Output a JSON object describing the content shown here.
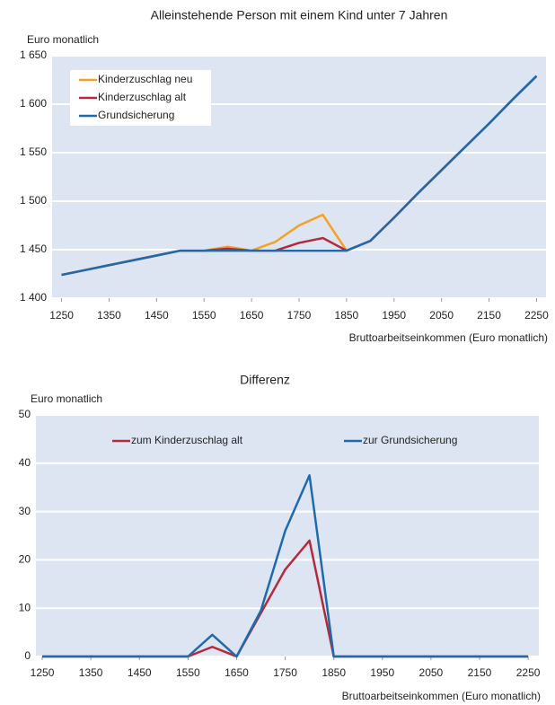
{
  "chart_data": [
    {
      "type": "line",
      "title": "Alleinstehende Person mit einem Kind unter 7 Jahren",
      "ylabel": "Euro monatlich",
      "xlabel": "Bruttoarbeitseinkommen (Euro monatlich)",
      "x": [
        1250,
        1300,
        1350,
        1400,
        1450,
        1500,
        1550,
        1600,
        1650,
        1700,
        1750,
        1800,
        1850,
        1900,
        1950,
        2000,
        2050,
        2100,
        2150,
        2200,
        2250
      ],
      "series": [
        {
          "name": "Kinderzuschlag neu",
          "color": "#f4a125",
          "values": [
            1424,
            1429,
            1434,
            1439,
            1444,
            1449,
            1449,
            1453,
            1449,
            1458,
            1475,
            1486,
            1449,
            1459,
            1483,
            1508,
            1532,
            1556,
            1580,
            1605,
            1629
          ]
        },
        {
          "name": "Kinderzuschlag alt",
          "color": "#b52a3a",
          "values": [
            1424,
            1429,
            1434,
            1439,
            1444,
            1449,
            1449,
            1451,
            1449,
            1449,
            1457,
            1462,
            1449,
            1459,
            1483,
            1508,
            1532,
            1556,
            1580,
            1605,
            1629
          ]
        },
        {
          "name": "Grundsicherung",
          "color": "#1f6aad",
          "values": [
            1424,
            1429,
            1434,
            1439,
            1444,
            1449,
            1449,
            1449,
            1449,
            1449,
            1449,
            1449,
            1449,
            1459,
            1483,
            1508,
            1532,
            1556,
            1580,
            1605,
            1629
          ]
        }
      ],
      "xlim": [
        1230,
        2270
      ],
      "xticks": [
        1250,
        1350,
        1450,
        1550,
        1650,
        1750,
        1850,
        1950,
        2050,
        2150,
        2250
      ],
      "ylim": [
        1400,
        1650
      ],
      "yticks": [
        {
          "value": 1400,
          "label": "1 400"
        },
        {
          "value": 1450,
          "label": "1 450"
        },
        {
          "value": 1500,
          "label": "1 500"
        },
        {
          "value": 1550,
          "label": "1 550"
        },
        {
          "value": 1600,
          "label": "1 600"
        },
        {
          "value": 1650,
          "label": "1 650"
        }
      ],
      "grid": true,
      "legend": "upper left"
    },
    {
      "type": "line",
      "title": "Differenz",
      "ylabel": "Euro monatlich",
      "xlabel": "Bruttoarbeitseinkommen (Euro monatlich)",
      "x": [
        1250,
        1300,
        1350,
        1400,
        1450,
        1500,
        1550,
        1600,
        1650,
        1700,
        1750,
        1800,
        1850,
        1900,
        1950,
        2000,
        2050,
        2100,
        2150,
        2200,
        2250
      ],
      "series": [
        {
          "name": "zum Kinderzuschlag alt",
          "color": "#b52a3a",
          "values": [
            0,
            0,
            0,
            0,
            0,
            0,
            0,
            2,
            0,
            9,
            18,
            24,
            0,
            0,
            0,
            0,
            0,
            0,
            0,
            0,
            0
          ]
        },
        {
          "name": "zur Grundsicherung",
          "color": "#1f6aad",
          "values": [
            0,
            0,
            0,
            0,
            0,
            0,
            0,
            4.5,
            0,
            9.5,
            26,
            37.5,
            0,
            0,
            0,
            0,
            0,
            0,
            0,
            0,
            0
          ]
        }
      ],
      "xlim": [
        1237,
        2272
      ],
      "xticks": [
        1250,
        1350,
        1450,
        1550,
        1650,
        1750,
        1850,
        1950,
        2050,
        2150,
        2250
      ],
      "ylim": [
        0,
        50
      ],
      "yticks": [
        0,
        10,
        20,
        30,
        40,
        50
      ],
      "grid": true,
      "legend": "upper center"
    }
  ]
}
